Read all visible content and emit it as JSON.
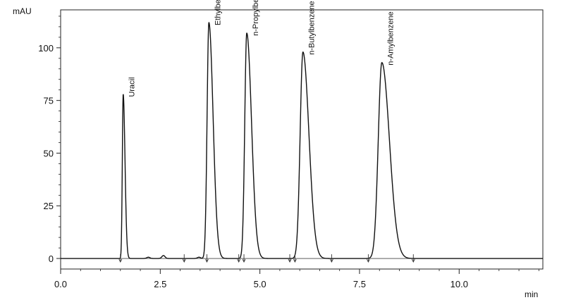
{
  "chart_data": {
    "type": "line",
    "title": "",
    "xlabel": "min",
    "ylabel": "mAU",
    "xlim": [
      0,
      12.1
    ],
    "ylim": [
      -5,
      118
    ],
    "x_ticks": [
      0.0,
      2.5,
      5.0,
      7.5,
      10.0
    ],
    "x_tick_labels": [
      "0.0",
      "2.5",
      "5.0",
      "7.5",
      "10.0"
    ],
    "y_ticks": [
      0,
      25,
      50,
      75,
      100
    ],
    "y_tick_labels": [
      "0",
      "25",
      "50",
      "75",
      "100"
    ],
    "grid": false,
    "series": [
      {
        "peaks": [
          {
            "name": "Uracil",
            "rt": 1.57,
            "height": 78,
            "sigma_left": 0.022,
            "sigma_right": 0.045
          },
          {
            "name": "Ethylbenzene",
            "rt": 3.72,
            "height": 112,
            "sigma_left": 0.045,
            "sigma_right": 0.105
          },
          {
            "name": "n-Propylbenzene",
            "rt": 4.67,
            "height": 107,
            "sigma_left": 0.05,
            "sigma_right": 0.12
          },
          {
            "name": "n-Butylbenzene",
            "rt": 6.08,
            "height": 98,
            "sigma_left": 0.07,
            "sigma_right": 0.15
          },
          {
            "name": "n-Amylbenzene",
            "rt": 8.06,
            "height": 93,
            "sigma_left": 0.09,
            "sigma_right": 0.19
          }
        ],
        "minor_peaks": [
          {
            "rt": 2.2,
            "height": 0.6
          },
          {
            "rt": 2.58,
            "height": 1.4
          },
          {
            "rt": 3.47,
            "height": 0.6
          }
        ],
        "integration_marks": [
          1.5,
          3.1,
          3.67,
          4.47,
          4.6,
          5.75,
          5.88,
          6.8,
          7.72,
          8.85
        ]
      }
    ]
  }
}
